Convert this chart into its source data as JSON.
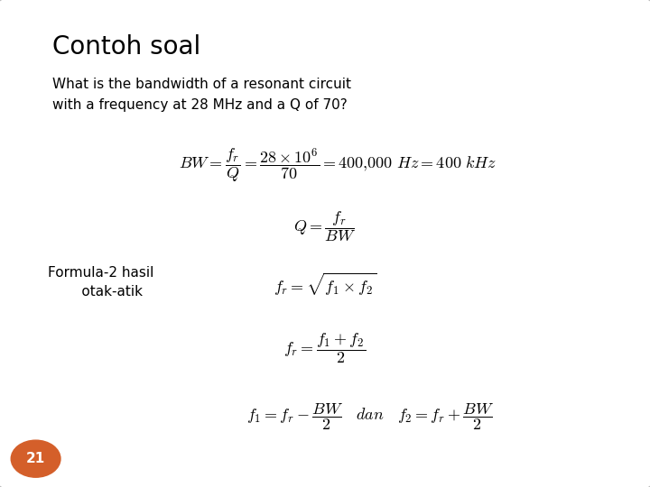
{
  "title": "Contoh soal",
  "question": "What is the bandwidth of a resonant circuit\nwith a frequency at 28 MHz and a Q of 70?",
  "formula_label": "Formula-2 hasil\n     otak-atik",
  "page_number": "21",
  "bg_color": "#ffffff",
  "title_color": "#000000",
  "question_color": "#000000",
  "page_circle_color": "#d45f2a",
  "page_number_color": "#ffffff",
  "main_formula": "$BW = \\dfrac{f_r}{Q} = \\dfrac{28 \\times 10^6}{70} = 400{,}000\\ Hz = 400\\ kHz$",
  "formula2_q": "$Q = \\dfrac{f_r}{BW}$",
  "formula2_fr1": "$f_r = \\sqrt{f_1 \\times f_2}$",
  "formula2_fr2": "$f_r = \\dfrac{f_1 + f_2}{2}$",
  "formula2_f1f2": "$f_1 = f_r - \\dfrac{BW}{2} \\quad dan \\quad f_2 = f_r + \\dfrac{BW}{2}$"
}
